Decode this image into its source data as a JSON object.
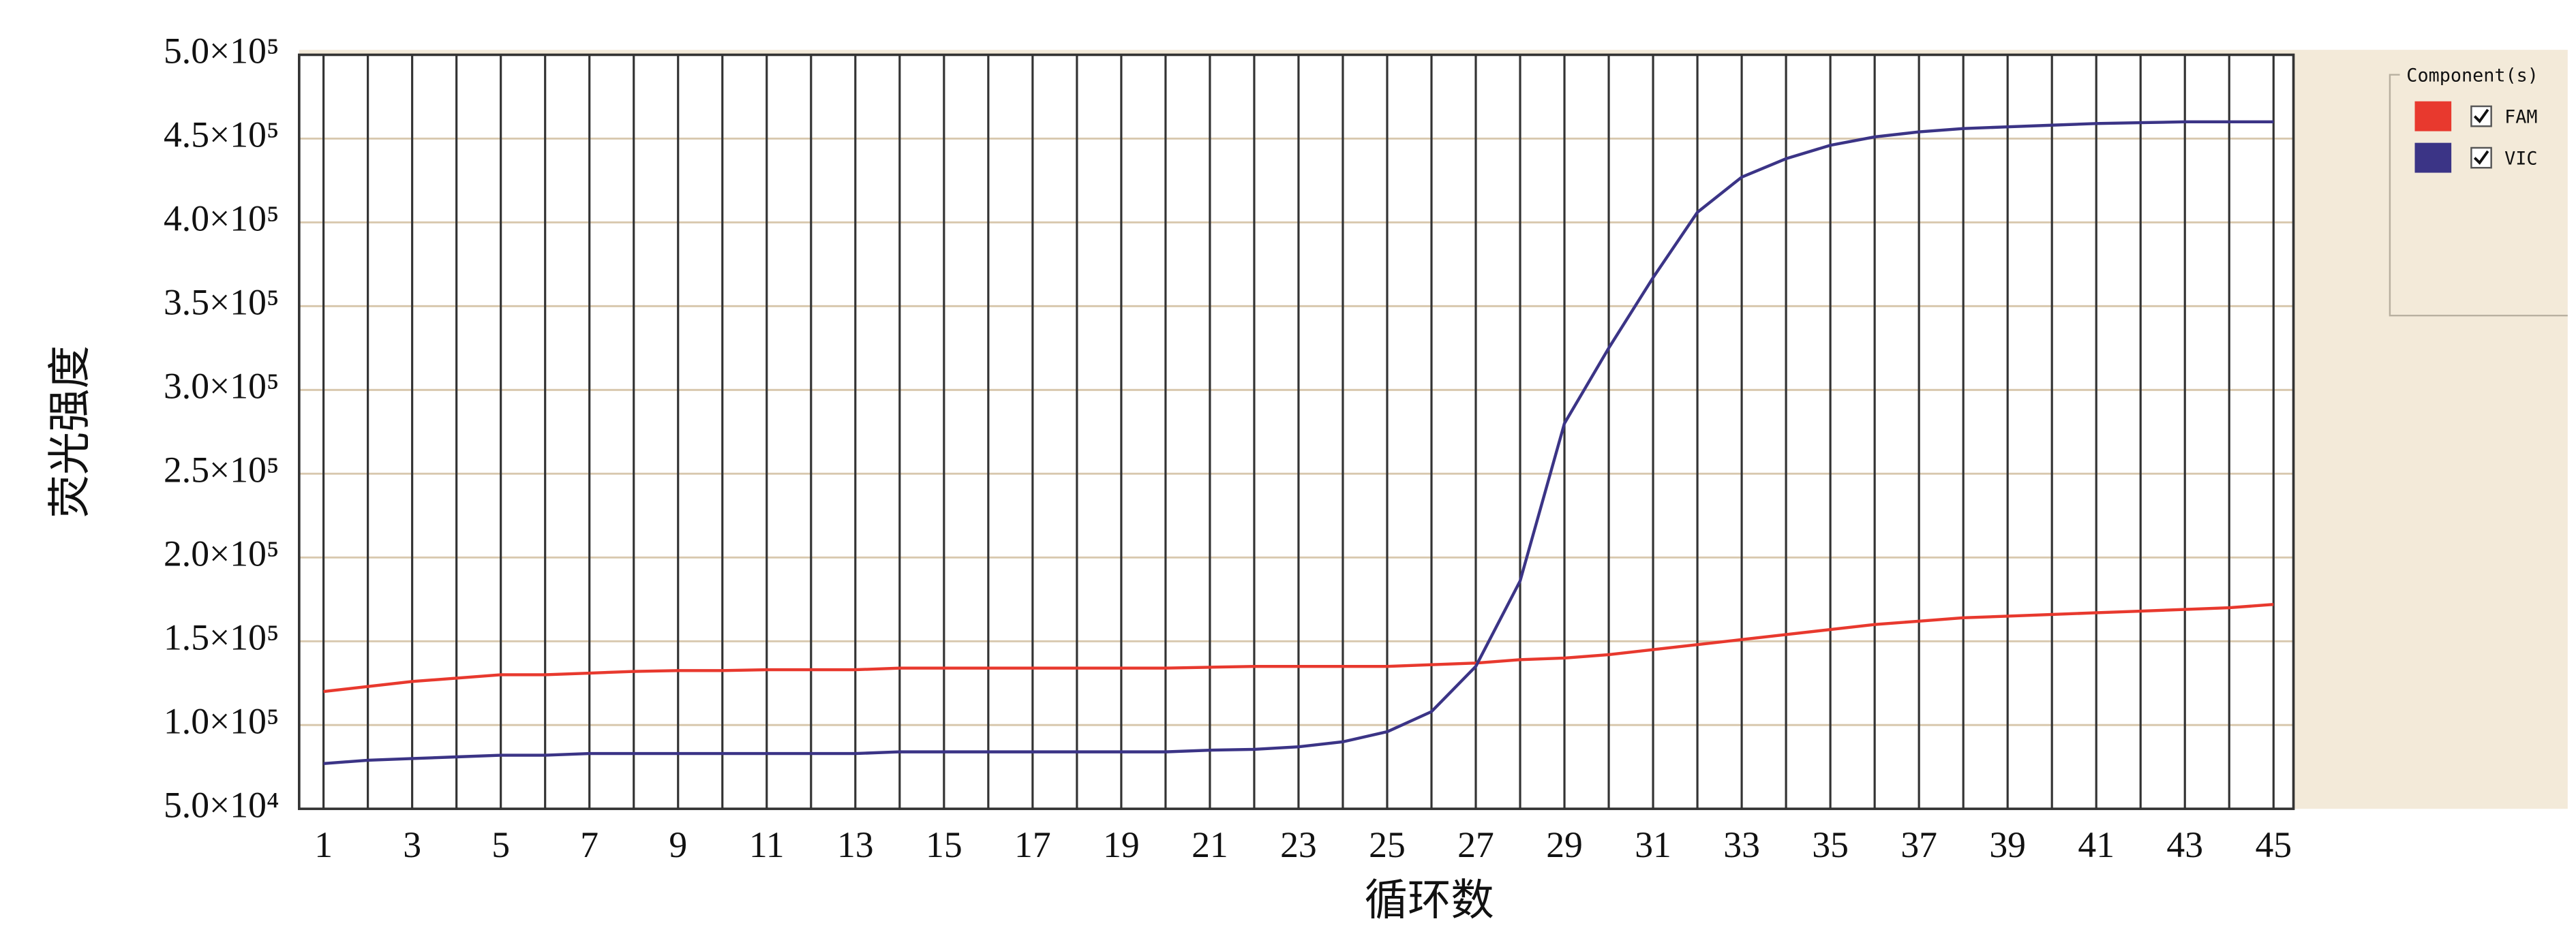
{
  "chart_data": {
    "type": "line",
    "y_label": "荧光强度",
    "x_label": "循环数",
    "legend_title": "Component(s)",
    "legend": "right",
    "x": [
      1,
      2,
      3,
      4,
      5,
      6,
      7,
      8,
      9,
      10,
      11,
      12,
      13,
      14,
      15,
      16,
      17,
      18,
      19,
      20,
      21,
      22,
      23,
      24,
      25,
      26,
      27,
      28,
      29,
      30,
      31,
      32,
      33,
      34,
      35,
      36,
      37,
      38,
      39,
      40,
      41,
      42,
      43,
      44,
      45
    ],
    "xlim": [
      0.45,
      45.45
    ],
    "xticks": [
      1,
      3,
      5,
      7,
      9,
      11,
      13,
      15,
      17,
      19,
      21,
      23,
      25,
      27,
      29,
      31,
      33,
      35,
      37,
      39,
      41,
      43,
      45
    ],
    "xminor_ticks": [
      2,
      4,
      6,
      8,
      10,
      12,
      14,
      16,
      18,
      20,
      22,
      24,
      26,
      28,
      30,
      32,
      34,
      36,
      38,
      40,
      42,
      44
    ],
    "ylim": [
      50000,
      500000
    ],
    "yticks": [
      {
        "value": 50000,
        "label": "5.0×10⁴"
      },
      {
        "value": 100000,
        "label": "1.0×10⁵"
      },
      {
        "value": 150000,
        "label": "1.5×10⁵"
      },
      {
        "value": 200000,
        "label": "2.0×10⁵"
      },
      {
        "value": 250000,
        "label": "2.5×10⁵"
      },
      {
        "value": 300000,
        "label": "3.0×10⁵"
      },
      {
        "value": 350000,
        "label": "3.5×10⁵"
      },
      {
        "value": 400000,
        "label": "4.0×10⁵"
      },
      {
        "value": 450000,
        "label": "4.5×10⁵"
      },
      {
        "value": 500000,
        "label": "5.0×10⁵"
      }
    ],
    "grid": true,
    "series": [
      {
        "name": "FAM",
        "color": "#e8392e",
        "values": [
          120000,
          123000,
          126000,
          128000,
          130000,
          130000,
          131000,
          132000,
          132500,
          132500,
          133000,
          133000,
          133000,
          134000,
          134000,
          134000,
          134000,
          134000,
          134000,
          134000,
          134500,
          135000,
          135000,
          135000,
          135000,
          136000,
          137000,
          139000,
          140000,
          142000,
          145000,
          148000,
          151000,
          154000,
          157000,
          160000,
          162000,
          164000,
          165000,
          166000,
          167000,
          168000,
          169000,
          170000,
          172000
        ]
      },
      {
        "name": "VIC",
        "color": "#3b3486",
        "values": [
          77000,
          79000,
          80000,
          81000,
          82000,
          82000,
          83000,
          83000,
          83000,
          83000,
          83000,
          83000,
          83000,
          84000,
          84000,
          84000,
          84000,
          84000,
          84000,
          84000,
          85000,
          85500,
          87000,
          90000,
          96000,
          108000,
          135000,
          186000,
          280000,
          325000,
          367000,
          406000,
          427000,
          438000,
          446000,
          451000,
          454000,
          456000,
          457000,
          458000,
          459000,
          459500,
          460000,
          460000,
          460000
        ]
      }
    ]
  }
}
